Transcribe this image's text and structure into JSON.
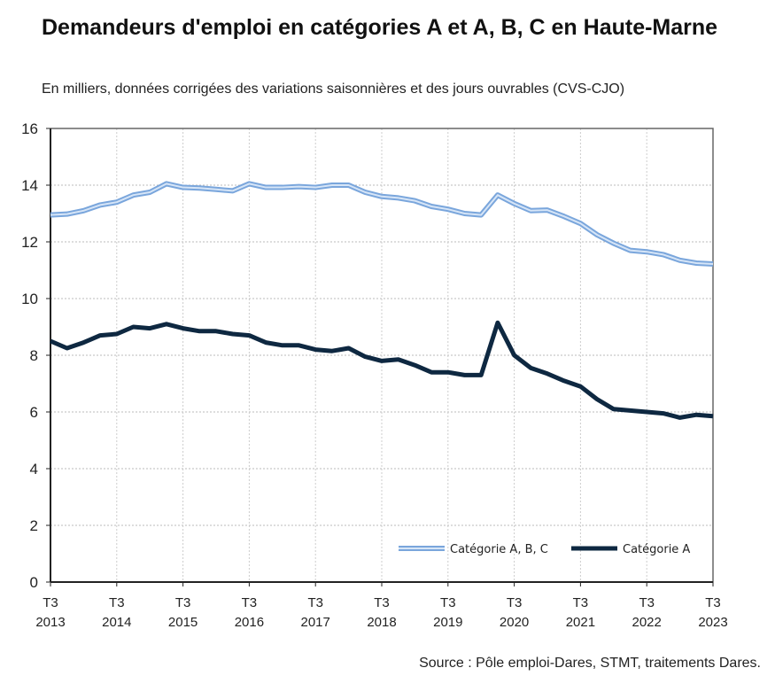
{
  "chart_data": {
    "type": "line",
    "title": "Demandeurs d'emploi en catégories A et A, B, C en Haute-Marne",
    "subtitle": "En milliers, données corrigées des variations saisonnières et des jours ouvrables (CVS-CJO)",
    "source": "Source : Pôle emploi-Dares, STMT, traitements Dares.",
    "xlabel": "",
    "ylabel": "",
    "ylim": [
      0,
      16
    ],
    "yticks": [
      "0",
      "2",
      "4",
      "6",
      "8",
      "10",
      "12",
      "14",
      "16"
    ],
    "xticks": [
      [
        "T3",
        "2013"
      ],
      [
        "T3",
        "2014"
      ],
      [
        "T3",
        "2015"
      ],
      [
        "T3",
        "2016"
      ],
      [
        "T3",
        "2017"
      ],
      [
        "T3",
        "2018"
      ],
      [
        "T3",
        "2019"
      ],
      [
        "T3",
        "2020"
      ],
      [
        "T3",
        "2021"
      ],
      [
        "T3",
        "2022"
      ],
      [
        "T3",
        "2023"
      ]
    ],
    "x_start": "T3 2013",
    "x_end": "T3 2023",
    "x_frequency": "quarterly",
    "grid": true,
    "legend_position": "bottom-right",
    "series": [
      {
        "name": "Catégorie A, B, C",
        "color": "#8db4e2",
        "values": [
          12.95,
          12.98,
          13.1,
          13.3,
          13.4,
          13.65,
          13.75,
          14.05,
          13.92,
          13.9,
          13.85,
          13.8,
          14.05,
          13.92,
          13.92,
          13.95,
          13.92,
          14.0,
          14.0,
          13.75,
          13.6,
          13.55,
          13.45,
          13.25,
          13.15,
          13.0,
          12.95,
          13.65,
          13.35,
          13.1,
          13.12,
          12.9,
          12.65,
          12.25,
          11.95,
          11.7,
          11.65,
          11.55,
          11.35,
          11.25,
          11.22
        ]
      },
      {
        "name": "Catégorie A",
        "color": "#0e2841",
        "values": [
          8.5,
          8.25,
          8.45,
          8.7,
          8.75,
          9.0,
          8.95,
          9.1,
          8.95,
          8.85,
          8.85,
          8.75,
          8.7,
          8.45,
          8.35,
          8.35,
          8.2,
          8.15,
          8.25,
          7.95,
          7.8,
          7.85,
          7.65,
          7.4,
          7.4,
          7.3,
          7.3,
          9.15,
          8.0,
          7.55,
          7.35,
          7.1,
          6.9,
          6.45,
          6.1,
          6.05,
          6.0,
          5.95,
          5.8,
          5.9,
          5.85
        ]
      }
    ]
  }
}
